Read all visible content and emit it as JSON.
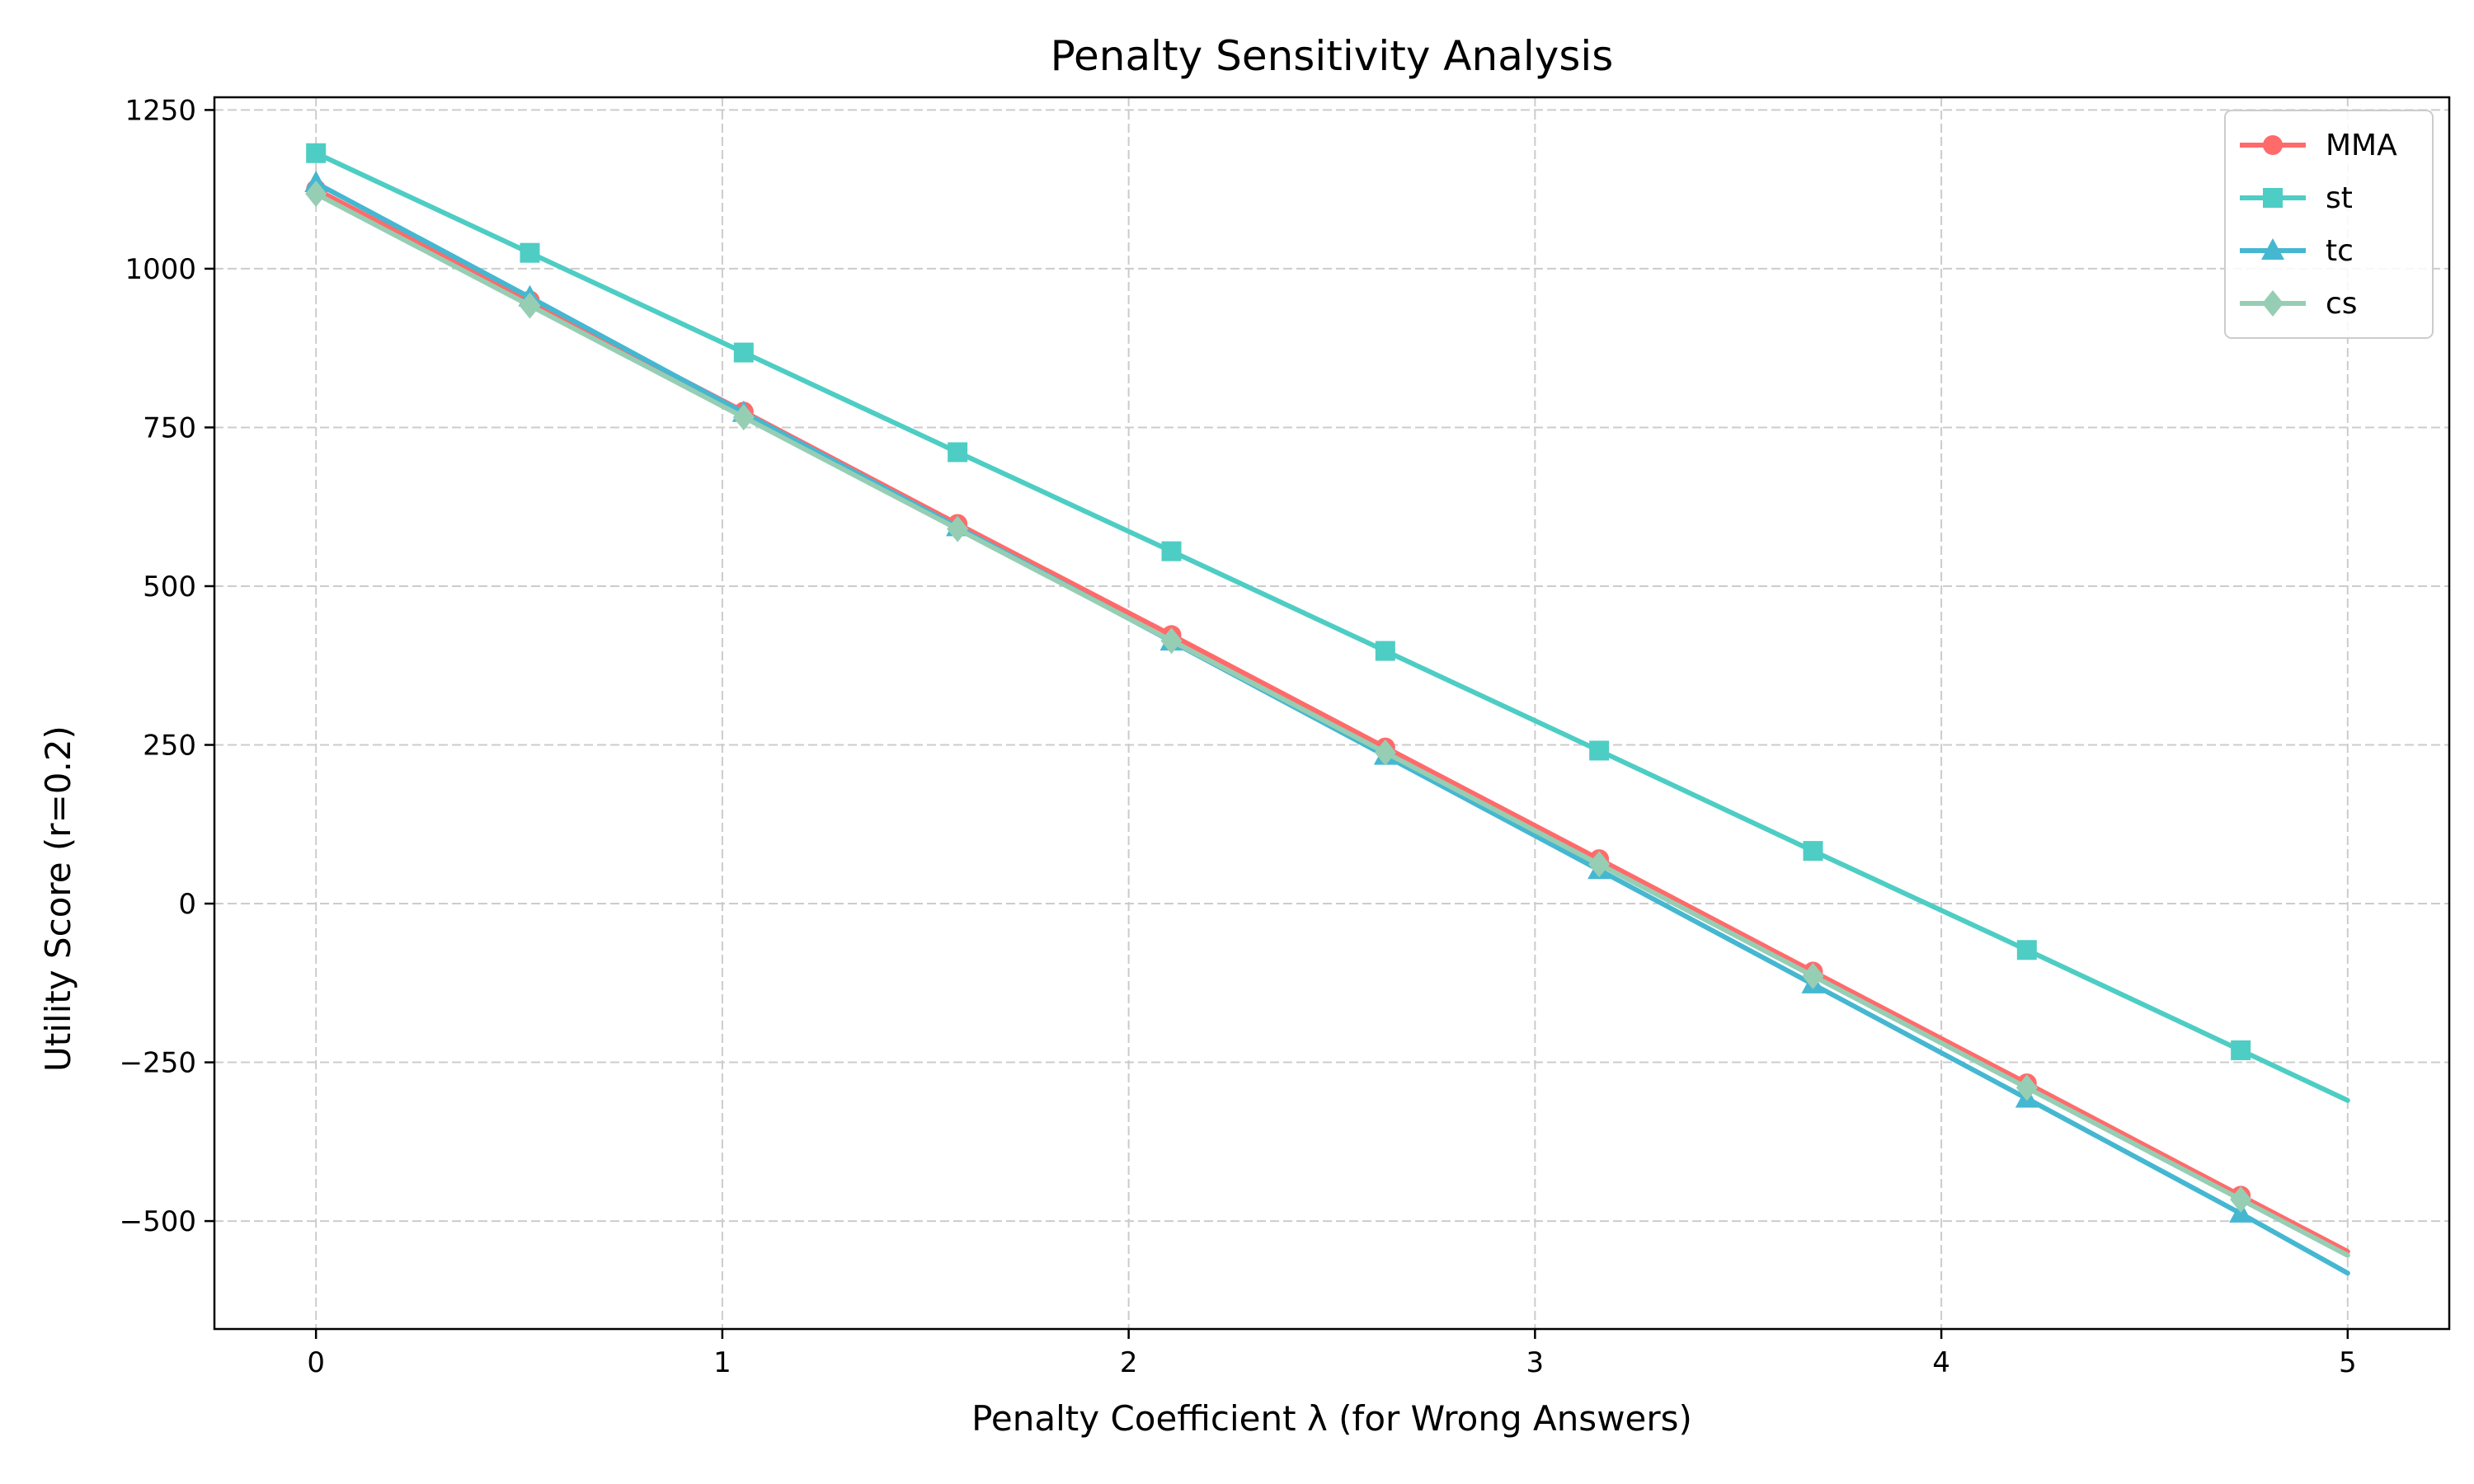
{
  "chart_data": {
    "type": "line",
    "title": "Penalty Sensitivity Analysis",
    "xlabel": "Penalty Coefficient λ (for Wrong Answers)",
    "ylabel": "Utility Score (r=0.2)",
    "xlim": [
      -0.25,
      5.25
    ],
    "ylim": [
      -670,
      1270
    ],
    "xticks": [
      0,
      1,
      2,
      3,
      4,
      5
    ],
    "xtick_labels": [
      "0",
      "1",
      "2",
      "3",
      "4",
      "5"
    ],
    "yticks": [
      -500,
      -250,
      0,
      250,
      500,
      750,
      1000,
      1250
    ],
    "ytick_labels": [
      "−500",
      "−250",
      "0",
      "250",
      "500",
      "750",
      "1000",
      "1250"
    ],
    "grid": true,
    "legend_position": "top-right",
    "x": [
      0,
      0.5263,
      1.0526,
      1.5789,
      2.1053,
      2.6316,
      3.1579,
      3.6842,
      4.2105,
      4.7368,
      5.0
    ],
    "series": [
      {
        "name": "MMA",
        "color": "#ff6b6b",
        "marker": "circle",
        "values": [
          1125,
          950,
          775,
          598,
          423,
          246,
          70,
          -107,
          -283,
          -460,
          -548
        ]
      },
      {
        "name": "st",
        "color": "#4ecdc4",
        "marker": "square",
        "values": [
          1182,
          1025,
          868,
          711,
          555,
          398,
          241,
          83,
          -73,
          -231,
          -310
        ]
      },
      {
        "name": "tc",
        "color": "#45b7d1",
        "marker": "triangle",
        "values": [
          1135,
          955,
          773,
          593,
          413,
          233,
          53,
          -127,
          -307,
          -488,
          -582
        ]
      },
      {
        "name": "cs",
        "color": "#96ceb4",
        "marker": "diamond",
        "values": [
          1118,
          942,
          766,
          590,
          414,
          238,
          62,
          -114,
          -290,
          -466,
          -554
        ]
      }
    ]
  }
}
